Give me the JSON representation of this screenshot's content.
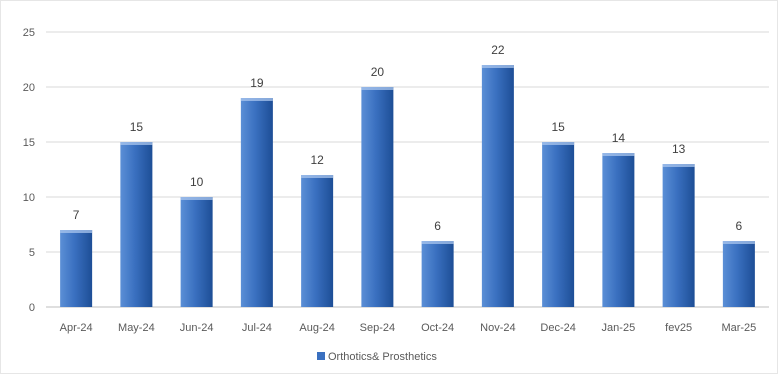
{
  "chart_data": {
    "type": "bar",
    "categories": [
      "Apr-24",
      "May-24",
      "Jun-24",
      "Jul-24",
      "Aug-24",
      "Sep-24",
      "Oct-24",
      "Nov-24",
      "Dec-24",
      "Jan-25",
      "fev25",
      "Mar-25"
    ],
    "series": [
      {
        "name": "Orthotics& Prosthetics",
        "values": [
          7,
          15,
          10,
          19,
          12,
          20,
          6,
          22,
          15,
          14,
          13,
          6
        ]
      }
    ],
    "ylim": [
      0,
      25
    ],
    "yticks": [
      0,
      5,
      10,
      15,
      20,
      25
    ],
    "grid": true,
    "legend_position": "bottom",
    "colors": {
      "bar_light": "#5b8fd6",
      "bar_mid": "#3a70c0",
      "bar_dark": "#1d4e96",
      "bar_top": "#a9c6ee",
      "grid": "#d9d9d9",
      "axis": "#bfbfbf"
    }
  }
}
